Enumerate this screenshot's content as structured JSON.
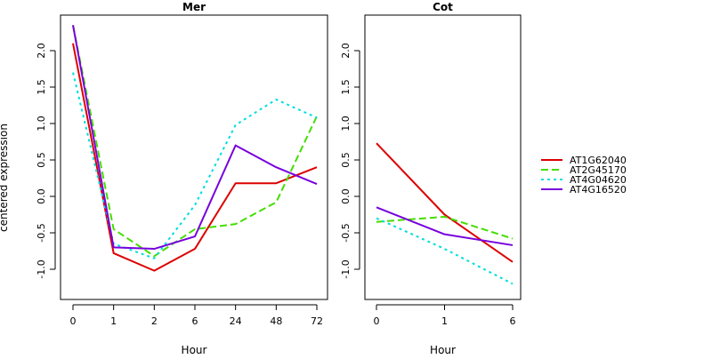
{
  "colors": {
    "AT1G62040": "#dd0000",
    "AT2G45170": "#44dd00",
    "AT4G04620": "#00dddd",
    "AT4G16520": "#7700dd"
  },
  "chart_data": [
    {
      "type": "line",
      "title": "Mer",
      "xlabel": "Hour",
      "ylabel": "centered expression",
      "categories": [
        "0",
        "1",
        "2",
        "6",
        "24",
        "48",
        "72"
      ],
      "ylim": [
        -1.3,
        2.4
      ],
      "yticks": [
        "-1.0",
        "-0.5",
        "0.0",
        "0.5",
        "1.0",
        "1.5",
        "2.0"
      ],
      "series": [
        {
          "name": "AT1G62040",
          "style": "solid",
          "values": [
            2.1,
            -0.78,
            -1.02,
            -0.72,
            0.18,
            0.18,
            0.4
          ]
        },
        {
          "name": "AT2G45170",
          "style": "dashed",
          "values": [
            2.35,
            -0.45,
            -0.82,
            -0.45,
            -0.38,
            -0.08,
            1.1
          ]
        },
        {
          "name": "AT4G04620",
          "style": "dotted",
          "values": [
            1.7,
            -0.65,
            -0.85,
            -0.12,
            0.98,
            1.33,
            1.08
          ]
        },
        {
          "name": "AT4G16520",
          "style": "solid",
          "values": [
            2.35,
            -0.7,
            -0.72,
            -0.55,
            0.7,
            0.4,
            0.17
          ]
        }
      ]
    },
    {
      "type": "line",
      "title": "Cot",
      "xlabel": "Hour",
      "ylabel": "",
      "categories": [
        "0",
        "1",
        "6"
      ],
      "ylim": [
        -1.3,
        2.4
      ],
      "yticks": [
        "-1.0",
        "-0.5",
        "0.0",
        "0.5",
        "1.0",
        "1.5",
        "2.0"
      ],
      "series": [
        {
          "name": "AT1G62040",
          "style": "solid",
          "values": [
            0.73,
            -0.25,
            -0.9
          ]
        },
        {
          "name": "AT2G45170",
          "style": "dashed",
          "values": [
            -0.35,
            -0.28,
            -0.58
          ]
        },
        {
          "name": "AT4G04620",
          "style": "dotted",
          "values": [
            -0.3,
            -0.72,
            -1.2
          ]
        },
        {
          "name": "AT4G16520",
          "style": "solid",
          "values": [
            -0.15,
            -0.52,
            -0.67
          ]
        }
      ]
    }
  ],
  "legend": {
    "placement": "right",
    "entries": [
      "AT1G62040",
      "AT2G45170",
      "AT4G04620",
      "AT4G16520"
    ]
  }
}
